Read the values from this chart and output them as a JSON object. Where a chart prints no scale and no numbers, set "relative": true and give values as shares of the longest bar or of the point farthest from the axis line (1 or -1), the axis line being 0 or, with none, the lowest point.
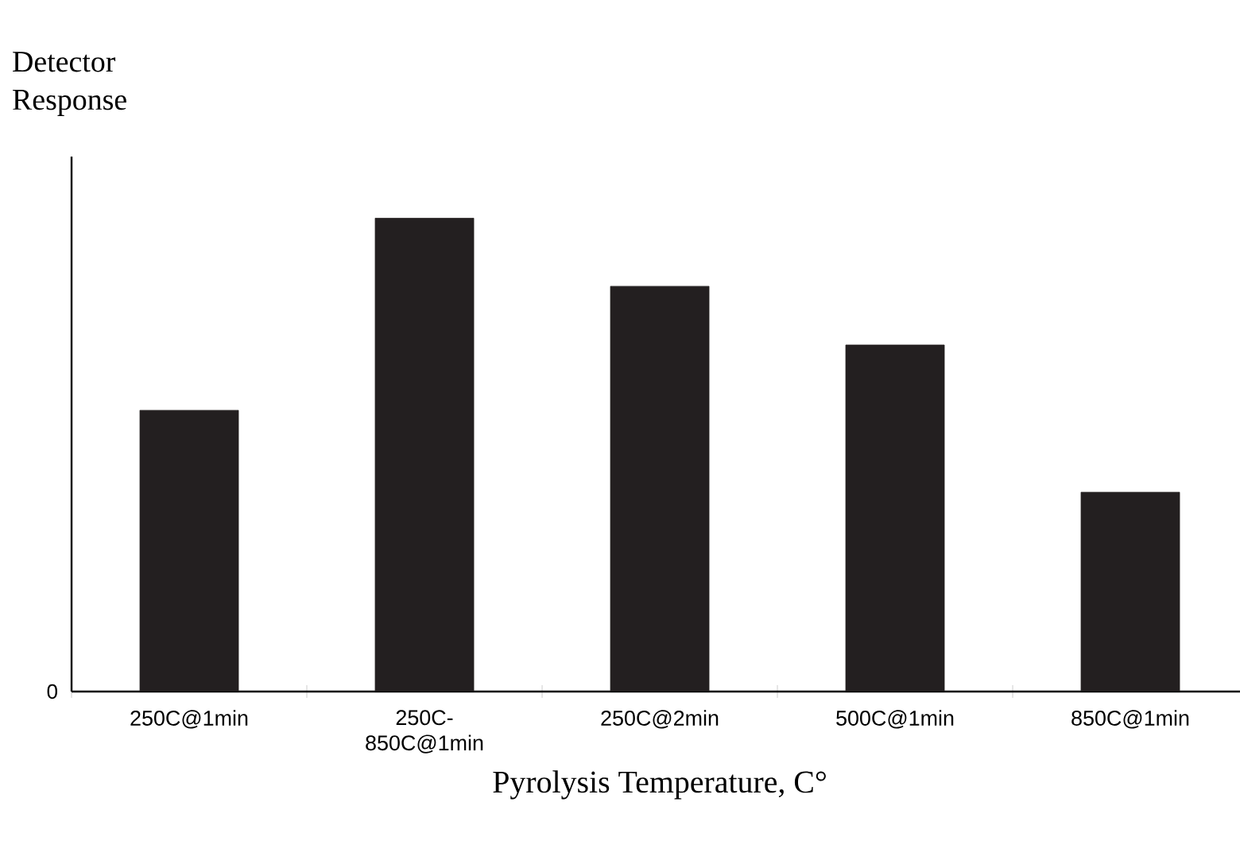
{
  "chart_data": {
    "type": "bar",
    "relative": true,
    "ylabel": "Detector Response",
    "xlabel": "Pyrolysis Temperature, C°",
    "categories": [
      "250C@1min",
      "250C-850C@1min",
      "250C@2min",
      "500C@1min",
      "850C@1min"
    ],
    "values": [
      0.594,
      1,
      0.856,
      0.732,
      0.421
    ],
    "color": "#231f20",
    "annotations": [
      "0"
    ]
  }
}
